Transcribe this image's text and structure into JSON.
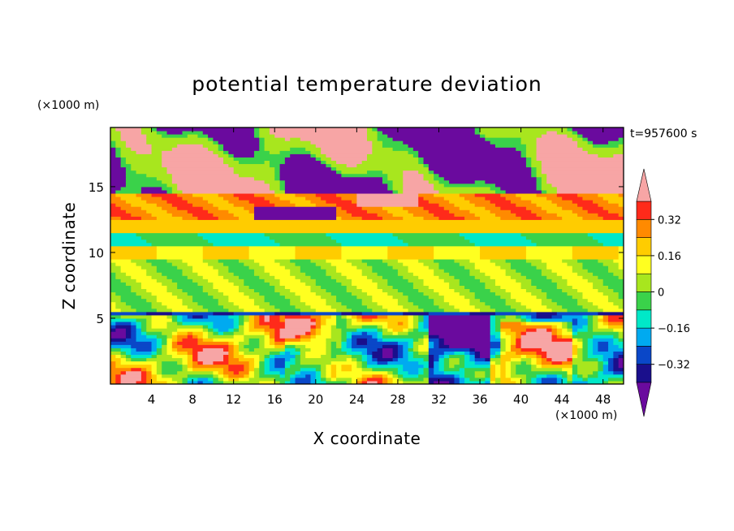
{
  "chart_data": {
    "type": "heatmap",
    "title": "potential temperature deviation",
    "xlabel": "X coordinate",
    "ylabel": "Z coordinate",
    "x_unit": "(×1000 m)",
    "y_unit": "(×1000 m)",
    "time_label": "t=957600 s",
    "xlim": [
      0,
      50
    ],
    "ylim": [
      0,
      19.5
    ],
    "x_ticks": [
      4,
      8,
      12,
      16,
      20,
      24,
      28,
      32,
      36,
      40,
      44,
      48
    ],
    "y_ticks": [
      5,
      10,
      15
    ],
    "colorbar": {
      "levels": [
        -0.4,
        -0.32,
        -0.24,
        -0.16,
        -0.08,
        0,
        0.08,
        0.16,
        0.24,
        0.32,
        0.4
      ],
      "tick_values": [
        -0.32,
        -0.16,
        0,
        0.16,
        0.32
      ],
      "tick_labels": [
        "−0.32",
        "−0.16",
        "0",
        "0.16",
        "0.32"
      ],
      "colors": [
        "#6a0a9e",
        "#1a0f8c",
        "#0a47c8",
        "#00aaf0",
        "#00e8c8",
        "#3ad24a",
        "#a8e61e",
        "#ffff20",
        "#ffcc00",
        "#ff8a00",
        "#ff2a1a",
        "#f7a5a5"
      ],
      "extend": "both"
    },
    "field_layers": [
      {
        "z_range": [
          0,
          5.2
        ],
        "description": "convective boundary layer"
      },
      {
        "z_range": [
          5.2,
          5.6
        ],
        "value": -0.3
      },
      {
        "z_range": [
          5.6,
          9.4
        ],
        "value": 0.04
      },
      {
        "z_range": [
          9.4,
          10.4
        ],
        "value": 0.16
      },
      {
        "z_range": [
          10.4,
          11.4
        ],
        "value": -0.08
      },
      {
        "z_range": [
          11.4,
          12.4
        ],
        "value": 0.2
      },
      {
        "z_range": [
          12.4,
          14.6
        ],
        "value": 0.28
      },
      {
        "z_range": [
          14.6,
          19.5
        ],
        "description": "upper layer patches"
      }
    ]
  }
}
